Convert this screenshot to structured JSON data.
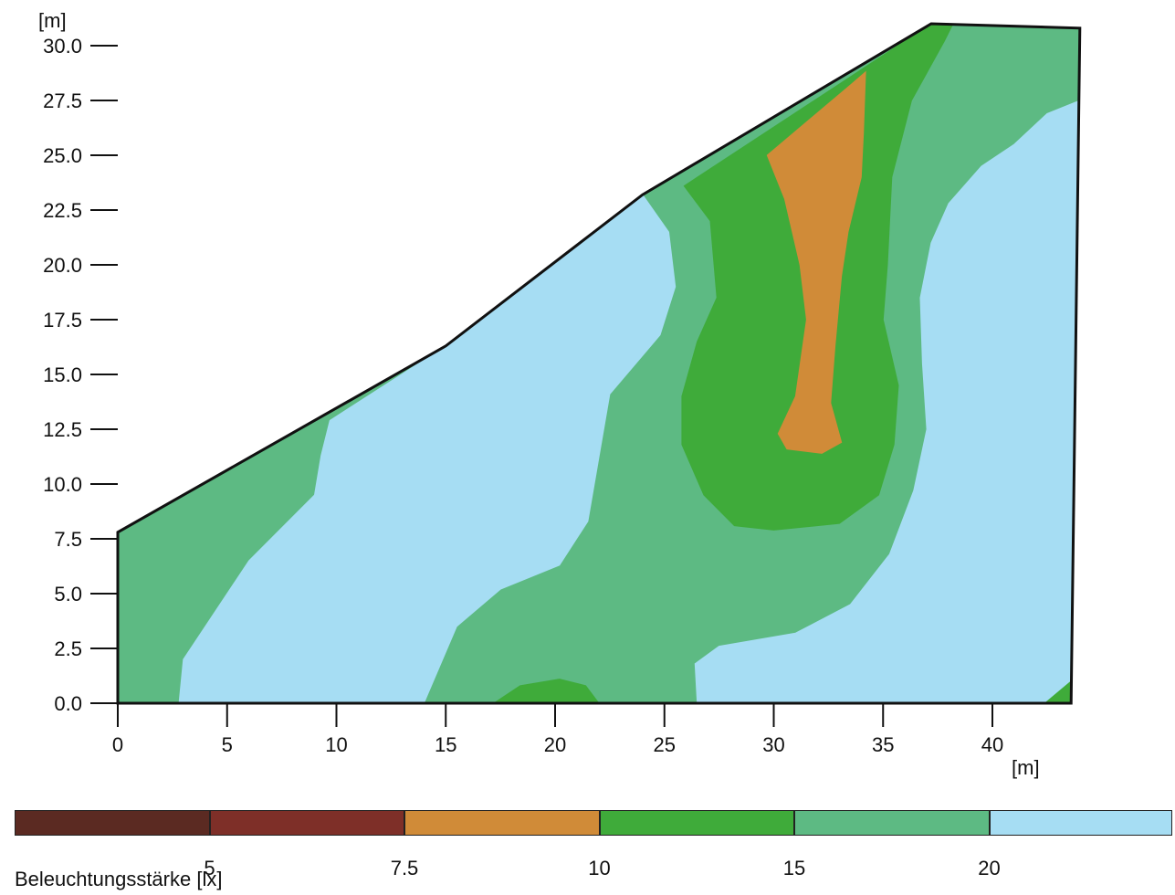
{
  "chart_data": {
    "type": "contour",
    "x_axis": {
      "unit": "[m]",
      "range": [
        0,
        44
      ],
      "ticks": [
        "0",
        "5",
        "10",
        "15",
        "20",
        "25",
        "30",
        "35",
        "40"
      ]
    },
    "y_axis": {
      "unit": "[m]",
      "range": [
        0,
        30.5
      ],
      "ticks": [
        "0.0",
        "2.5",
        "5.0",
        "7.5",
        "10.0",
        "12.5",
        "15.0",
        "17.5",
        "20.0",
        "22.5",
        "25.0",
        "27.5",
        "30.0"
      ]
    },
    "outline": [
      [
        0,
        0
      ],
      [
        0,
        7.8
      ],
      [
        15,
        16.3
      ],
      [
        24,
        23.2
      ],
      [
        37.2,
        31
      ],
      [
        44,
        30.8
      ],
      [
        43.6,
        0
      ]
    ],
    "regions": [
      {
        "band": "15-20",
        "color": "#5dba83",
        "points": [
          [
            0,
            0
          ],
          [
            0,
            7.8
          ],
          [
            15,
            16.3
          ],
          [
            24,
            23.2
          ],
          [
            37.2,
            31
          ],
          [
            44,
            30.8
          ],
          [
            43.6,
            0
          ]
        ]
      },
      {
        "band": ">20",
        "color": "#a6ddf3",
        "points": [
          [
            2.8,
            0
          ],
          [
            3,
            2
          ],
          [
            6,
            6.5
          ],
          [
            9,
            9.5
          ],
          [
            9.3,
            11.3
          ],
          [
            9.7,
            12.9
          ],
          [
            15,
            16.3
          ],
          [
            24,
            23.2
          ],
          [
            25.2,
            21.5
          ],
          [
            25.5,
            19
          ],
          [
            24.8,
            16.8
          ],
          [
            22.5,
            14.1
          ],
          [
            22,
            11.2
          ],
          [
            21.5,
            8.3
          ],
          [
            20.2,
            6.3
          ],
          [
            17.5,
            5.2
          ],
          [
            15.5,
            3.5
          ],
          [
            14,
            0
          ]
        ]
      },
      {
        "band": ">20",
        "color": "#a6ddf3",
        "points": [
          [
            26.5,
            0
          ],
          [
            26.4,
            1.8
          ],
          [
            27.5,
            2.6
          ],
          [
            31,
            3.2
          ],
          [
            33.5,
            4.5
          ],
          [
            35.3,
            6.8
          ],
          [
            36.4,
            9.7
          ],
          [
            37,
            12.5
          ],
          [
            36.8,
            15.5
          ],
          [
            36.7,
            18.5
          ],
          [
            37.2,
            21
          ],
          [
            38,
            22.8
          ],
          [
            39.5,
            24.5
          ],
          [
            41,
            25.5
          ],
          [
            42.5,
            26.9
          ],
          [
            44,
            27.5
          ],
          [
            43.6,
            0
          ]
        ]
      },
      {
        "band": "10-15",
        "color": "#3fab3a",
        "points": [
          [
            25.9,
            23.6
          ],
          [
            27.1,
            22
          ],
          [
            27.4,
            18.5
          ],
          [
            26.5,
            16.5
          ],
          [
            25.8,
            14
          ],
          [
            25.8,
            11.8
          ],
          [
            26.8,
            9.5
          ],
          [
            28.2,
            8.1
          ],
          [
            30,
            7.9
          ],
          [
            33,
            8.2
          ],
          [
            34.8,
            9.5
          ],
          [
            35.5,
            11.8
          ],
          [
            35.7,
            14.5
          ],
          [
            35,
            17.5
          ],
          [
            35.2,
            20
          ],
          [
            35.4,
            24
          ],
          [
            36.3,
            27.5
          ],
          [
            37.8,
            30.2
          ],
          [
            38.2,
            31
          ],
          [
            37.2,
            31
          ]
        ]
      },
      {
        "band": "10-15",
        "color": "#3fab3a",
        "points": [
          [
            17.2,
            0
          ],
          [
            18.4,
            0.8
          ],
          [
            20.2,
            1.1
          ],
          [
            21.4,
            0.8
          ],
          [
            22,
            0
          ]
        ]
      },
      {
        "band": "10-15",
        "color": "#3fab3a",
        "points": [
          [
            42.4,
            0
          ],
          [
            43.6,
            1
          ],
          [
            43.6,
            0
          ]
        ]
      },
      {
        "band": "7.5-10",
        "color": "#d08b38",
        "points": [
          [
            29.7,
            25
          ],
          [
            30.5,
            23
          ],
          [
            31.2,
            20
          ],
          [
            31.5,
            17.5
          ],
          [
            31,
            14
          ],
          [
            30.2,
            12.3
          ],
          [
            30.6,
            11.6
          ],
          [
            32.2,
            11.4
          ],
          [
            33.1,
            11.9
          ],
          [
            32.6,
            13.7
          ],
          [
            32.8,
            16.3
          ],
          [
            33.1,
            19.5
          ],
          [
            33.4,
            21.5
          ],
          [
            34,
            24
          ],
          [
            34.1,
            26
          ],
          [
            34.2,
            28.8
          ],
          [
            33.5,
            28.2
          ]
        ]
      }
    ],
    "colorbar": {
      "title": "Beleuchtungsstärke [lx]",
      "colors": [
        "#5b2a22",
        "#7e2f28",
        "#d08b38",
        "#3fab3a",
        "#5dba83",
        "#a6ddf3"
      ],
      "tick_labels": [
        "5",
        "7.5",
        "10",
        "15",
        "20"
      ]
    }
  }
}
